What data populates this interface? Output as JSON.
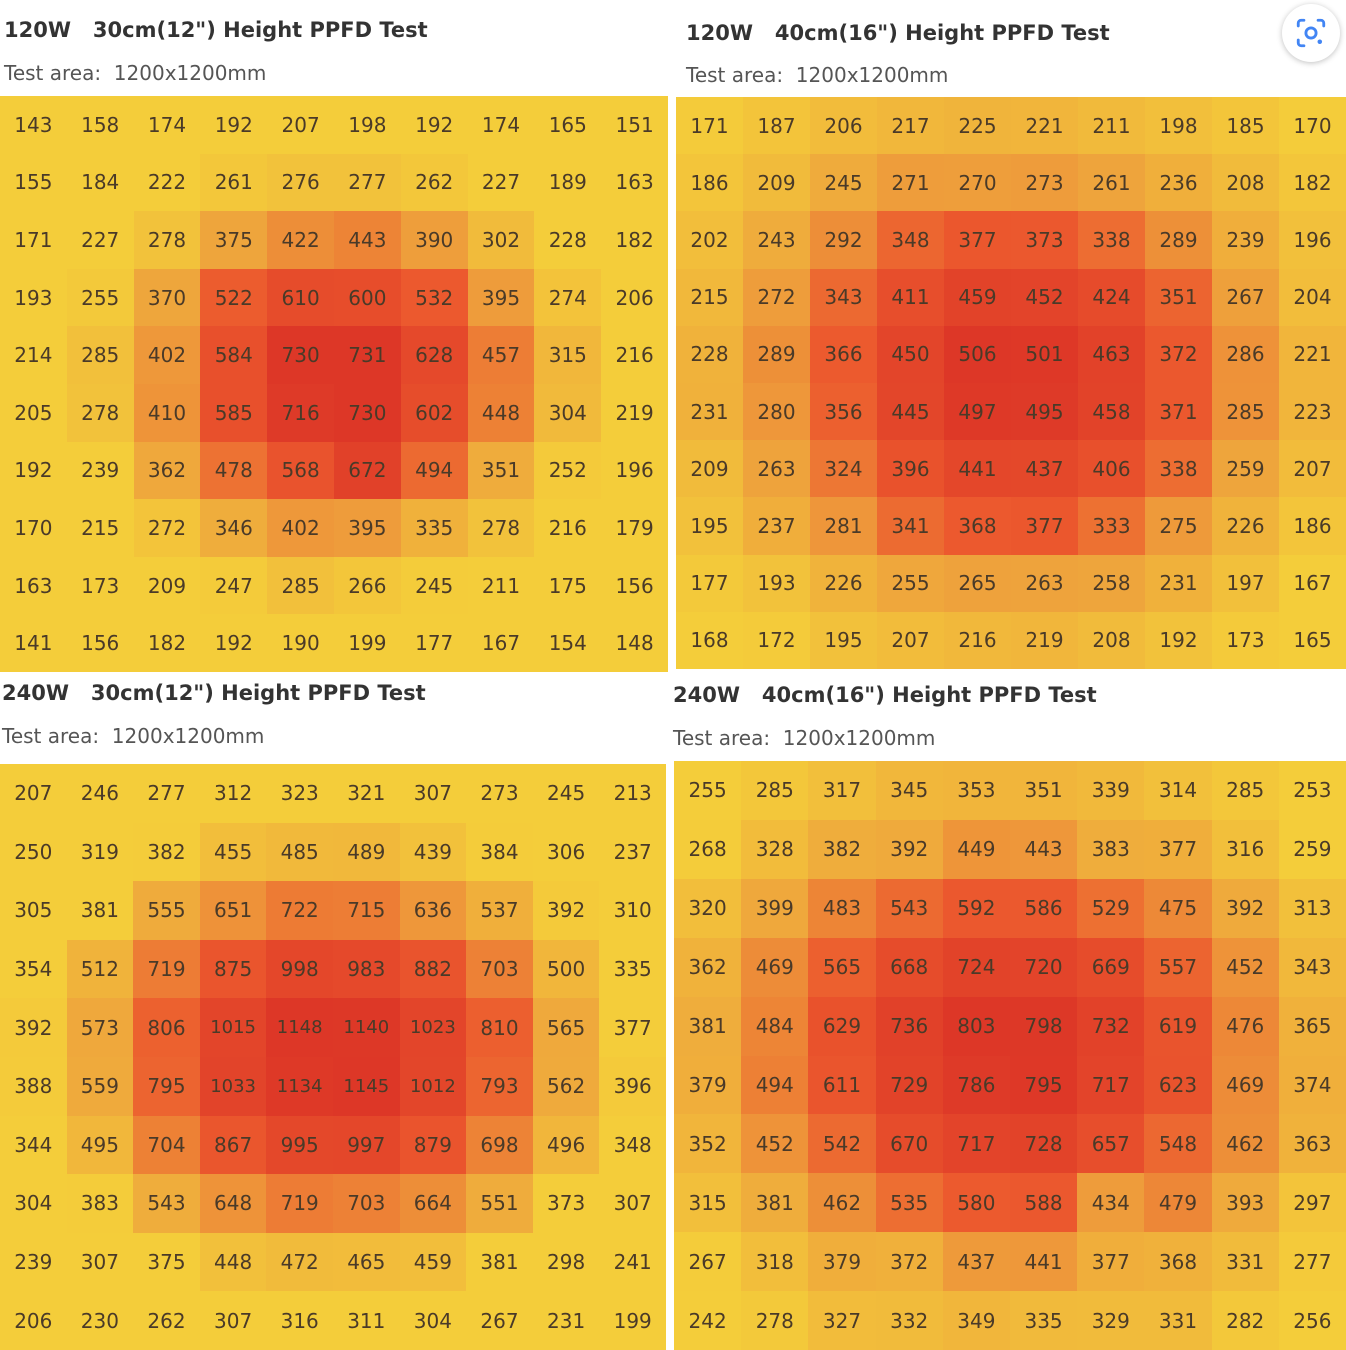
{
  "lens_button": {
    "icon": "google-lens-icon"
  },
  "color_scale": {
    "low": "#f4cd3a",
    "mid": "#eea33c",
    "high": "#ec5a2e",
    "max": "#dd3727"
  },
  "chart_data": [
    {
      "type": "heatmap",
      "title": "120W   30cm(12\") Height PPFD Test",
      "subtitle": "Test area:  1200x1200mm",
      "values": [
        [
          143,
          158,
          174,
          192,
          207,
          198,
          192,
          174,
          165,
          151
        ],
        [
          155,
          184,
          222,
          261,
          276,
          277,
          262,
          227,
          189,
          163
        ],
        [
          171,
          227,
          278,
          375,
          422,
          443,
          390,
          302,
          228,
          182
        ],
        [
          193,
          255,
          370,
          522,
          610,
          600,
          532,
          395,
          274,
          206
        ],
        [
          214,
          285,
          402,
          584,
          730,
          731,
          628,
          457,
          315,
          216
        ],
        [
          205,
          278,
          410,
          585,
          716,
          730,
          602,
          448,
          304,
          219
        ],
        [
          192,
          239,
          362,
          478,
          568,
          672,
          494,
          351,
          252,
          196
        ],
        [
          170,
          215,
          272,
          346,
          402,
          395,
          335,
          278,
          216,
          179
        ],
        [
          163,
          173,
          209,
          247,
          285,
          266,
          245,
          211,
          175,
          156
        ],
        [
          141,
          156,
          182,
          192,
          190,
          199,
          177,
          167,
          154,
          148
        ]
      ]
    },
    {
      "type": "heatmap",
      "title": "120W   40cm(16\") Height PPFD Test",
      "subtitle": "Test area:  1200x1200mm",
      "values": [
        [
          171,
          187,
          206,
          217,
          225,
          221,
          211,
          198,
          185,
          170
        ],
        [
          186,
          209,
          245,
          271,
          270,
          273,
          261,
          236,
          208,
          182
        ],
        [
          202,
          243,
          292,
          348,
          377,
          373,
          338,
          289,
          239,
          196
        ],
        [
          215,
          272,
          343,
          411,
          459,
          452,
          424,
          351,
          267,
          204
        ],
        [
          228,
          289,
          366,
          450,
          506,
          501,
          463,
          372,
          286,
          221
        ],
        [
          231,
          280,
          356,
          445,
          497,
          495,
          458,
          371,
          285,
          223
        ],
        [
          209,
          263,
          324,
          396,
          441,
          437,
          406,
          338,
          259,
          207
        ],
        [
          195,
          237,
          281,
          341,
          368,
          377,
          333,
          275,
          226,
          186
        ],
        [
          177,
          193,
          226,
          255,
          265,
          263,
          258,
          231,
          197,
          167
        ],
        [
          168,
          172,
          195,
          207,
          216,
          219,
          208,
          192,
          173,
          165
        ]
      ]
    },
    {
      "type": "heatmap",
      "title": "240W   30cm(12\") Height PPFD Test",
      "subtitle": "Test area:  1200x1200mm",
      "values": [
        [
          207,
          246,
          277,
          312,
          323,
          321,
          307,
          273,
          245,
          213
        ],
        [
          250,
          319,
          382,
          455,
          485,
          489,
          439,
          384,
          306,
          237
        ],
        [
          305,
          381,
          555,
          651,
          722,
          715,
          636,
          537,
          392,
          310
        ],
        [
          354,
          512,
          719,
          875,
          998,
          983,
          882,
          703,
          500,
          335
        ],
        [
          392,
          573,
          806,
          1015,
          1148,
          1140,
          1023,
          810,
          565,
          377
        ],
        [
          388,
          559,
          795,
          1033,
          1134,
          1145,
          1012,
          793,
          562,
          396
        ],
        [
          344,
          495,
          704,
          867,
          995,
          997,
          879,
          698,
          496,
          348
        ],
        [
          304,
          383,
          543,
          648,
          719,
          703,
          664,
          551,
          373,
          307
        ],
        [
          239,
          307,
          375,
          448,
          472,
          465,
          459,
          381,
          298,
          241
        ],
        [
          206,
          230,
          262,
          307,
          316,
          311,
          304,
          267,
          231,
          199
        ]
      ]
    },
    {
      "type": "heatmap",
      "title": "240W   40cm(16\") Height PPFD Test",
      "subtitle": "Test area:  1200x1200mm",
      "values": [
        [
          255,
          285,
          317,
          345,
          353,
          351,
          339,
          314,
          285,
          253
        ],
        [
          268,
          328,
          382,
          392,
          449,
          443,
          383,
          377,
          316,
          259
        ],
        [
          320,
          399,
          483,
          543,
          592,
          586,
          529,
          475,
          392,
          313
        ],
        [
          362,
          469,
          565,
          668,
          724,
          720,
          669,
          557,
          452,
          343
        ],
        [
          381,
          484,
          629,
          736,
          803,
          798,
          732,
          619,
          476,
          365
        ],
        [
          379,
          494,
          611,
          729,
          786,
          795,
          717,
          623,
          469,
          374
        ],
        [
          352,
          452,
          542,
          670,
          717,
          728,
          657,
          548,
          462,
          363
        ],
        [
          315,
          381,
          462,
          535,
          580,
          588,
          434,
          479,
          393,
          297
        ],
        [
          267,
          318,
          379,
          372,
          437,
          441,
          377,
          368,
          331,
          277
        ],
        [
          242,
          278,
          327,
          332,
          349,
          335,
          329,
          331,
          282,
          256
        ]
      ]
    }
  ]
}
